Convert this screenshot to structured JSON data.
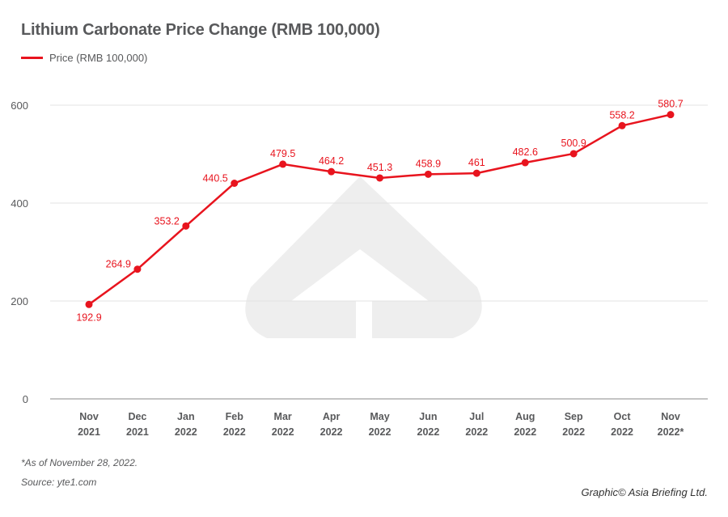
{
  "chart_data": {
    "type": "line",
    "title": "Lithium Carbonate Price Change (RMB 100,000)",
    "legend": [
      {
        "label": "Price (RMB 100,000)",
        "color": "#e8141e"
      }
    ],
    "legend_placement": "top-left",
    "categories": [
      [
        "Nov",
        "2021"
      ],
      [
        "Dec",
        "2021"
      ],
      [
        "Jan",
        "2022"
      ],
      [
        "Feb",
        "2022"
      ],
      [
        "Mar",
        "2022"
      ],
      [
        "Apr",
        "2022"
      ],
      [
        "May",
        "2022"
      ],
      [
        "Jun",
        "2022"
      ],
      [
        "Jul",
        "2022"
      ],
      [
        "Aug",
        "2022"
      ],
      [
        "Sep",
        "2022"
      ],
      [
        "Oct",
        "2022"
      ],
      [
        "Nov",
        "2022*"
      ]
    ],
    "series": [
      {
        "name": "Price (RMB 100,000)",
        "values": [
          192.9,
          264.9,
          353.2,
          440.5,
          479.5,
          464.2,
          451.3,
          458.9,
          461,
          482.6,
          500.9,
          558.2,
          580.7
        ],
        "labels": [
          "192.9",
          "264.9",
          "353.2",
          "440.5",
          "479.5",
          "464.2",
          "451.3",
          "458.9",
          "461",
          "482.6",
          "500.9",
          "558.2",
          "580.7"
        ]
      }
    ],
    "ylim": [
      0,
      600
    ],
    "yticks": [
      0,
      200,
      400,
      600
    ],
    "ytick_labels": [
      "0",
      "200",
      "400",
      "600"
    ],
    "grid": true,
    "xlabel": "",
    "ylabel": ""
  },
  "footnote": "*As of November 28, 2022.",
  "source": "Source: yte1.com",
  "credit": "Graphic© Asia Briefing Ltd.",
  "colors": {
    "line": "#e8141e",
    "text": "#58595b",
    "grid": "#e3e3e3"
  }
}
